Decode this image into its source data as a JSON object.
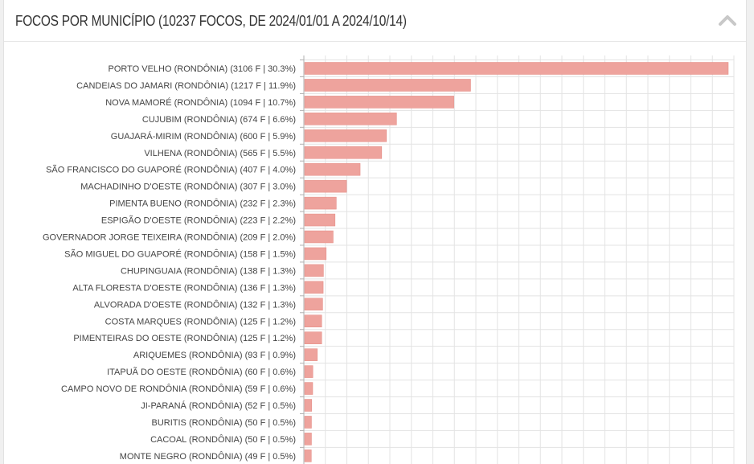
{
  "panel": {
    "title": "FOCOS POR MUNICÍPIO (10237 FOCOS, DE 2024/01/01 A 2024/10/14)",
    "collapse_icon": "chevron-up-icon"
  },
  "colors": {
    "bar": "#eea39d",
    "bar_stroke": "#e48a83",
    "grid": "#e3e3e3",
    "axis": "#b0b0b0"
  },
  "chart_data": {
    "type": "bar",
    "orientation": "horizontal",
    "xlim": [
      0,
      3200
    ],
    "grid": true,
    "categories": [
      "PORTO VELHO (RONDÔNIA) (3106 F | 30.3%)",
      "CANDEIAS DO JAMARI (RONDÔNIA) (1217 F | 11.9%)",
      "NOVA MAMORÉ (RONDÔNIA) (1094 F | 10.7%)",
      "CUJUBIM (RONDÔNIA) (674 F | 6.6%)",
      "GUAJARÁ-MIRIM (RONDÔNIA) (600 F | 5.9%)",
      "VILHENA (RONDÔNIA) (565 F | 5.5%)",
      "SÃO FRANCISCO DO GUAPORÉ (RONDÔNIA) (407 F | 4.0%)",
      "MACHADINHO D'OESTE (RONDÔNIA) (307 F | 3.0%)",
      "PIMENTA BUENO (RONDÔNIA) (232 F | 2.3%)",
      "ESPIGÃO D'OESTE (RONDÔNIA) (223 F | 2.2%)",
      "GOVERNADOR JORGE TEIXEIRA (RONDÔNIA) (209 F | 2.0%)",
      "SÃO MIGUEL DO GUAPORÉ (RONDÔNIA) (158 F | 1.5%)",
      "CHUPINGUAIA (RONDÔNIA) (138 F | 1.3%)",
      "ALTA FLORESTA D'OESTE (RONDÔNIA) (136 F | 1.3%)",
      "ALVORADA D'OESTE (RONDÔNIA) (132 F | 1.3%)",
      "COSTA MARQUES (RONDÔNIA) (125 F | 1.2%)",
      "PIMENTEIRAS DO OESTE (RONDÔNIA) (125 F | 1.2%)",
      "ARIQUEMES (RONDÔNIA) (93 F | 0.9%)",
      "ITAPUÃ DO OESTE (RONDÔNIA) (60 F | 0.6%)",
      "CAMPO NOVO DE RONDÔNIA (RONDÔNIA) (59 F | 0.6%)",
      "JI-PARANÁ (RONDÔNIA) (52 F | 0.5%)",
      "BURITIS (RONDÔNIA) (50 F | 0.5%)",
      "CACOAL (RONDÔNIA) (50 F | 0.5%)",
      "MONTE NEGRO (RONDÔNIA) (49 F | 0.5%)"
    ],
    "values": [
      3106,
      1217,
      1094,
      674,
      600,
      565,
      407,
      307,
      232,
      223,
      209,
      158,
      138,
      136,
      132,
      125,
      125,
      93,
      60,
      59,
      52,
      50,
      50,
      49
    ]
  }
}
